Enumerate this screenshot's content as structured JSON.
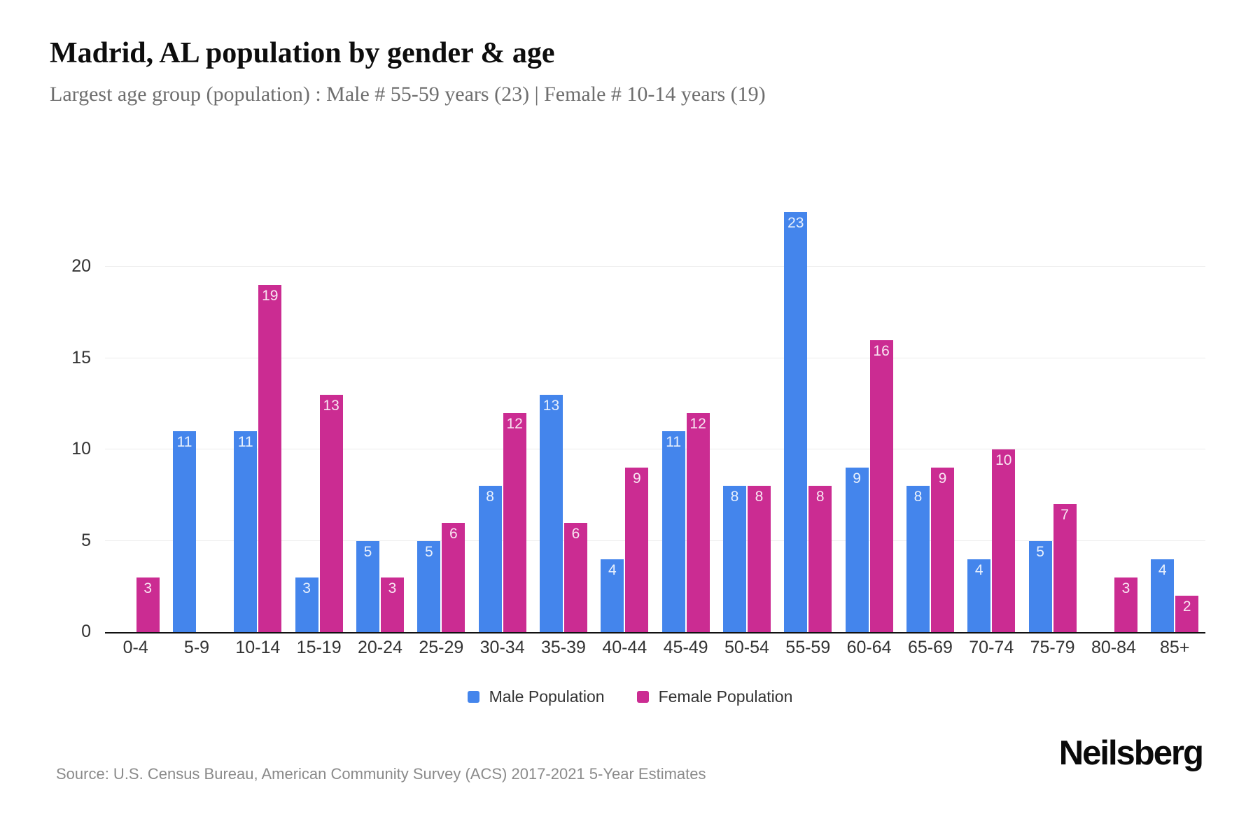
{
  "header": {
    "title": "Madrid, AL population by gender & age",
    "subtitle": "Largest age group (population) : Male # 55-59 years (23) | Female # 10-14 years (19)"
  },
  "chart_data": {
    "type": "bar",
    "title": "Madrid, AL population by gender & age",
    "categories": [
      "0-4",
      "5-9",
      "10-14",
      "15-19",
      "20-24",
      "25-29",
      "30-34",
      "35-39",
      "40-44",
      "45-49",
      "50-54",
      "55-59",
      "60-64",
      "65-69",
      "70-74",
      "75-79",
      "80-84",
      "85+"
    ],
    "series": [
      {
        "name": "Male Population",
        "color": "#4485EC",
        "values": [
          0,
          11,
          11,
          3,
          5,
          5,
          8,
          13,
          4,
          11,
          8,
          23,
          9,
          8,
          4,
          5,
          0,
          4
        ]
      },
      {
        "name": "Female Population",
        "color": "#CB2C92",
        "values": [
          3,
          0,
          19,
          13,
          3,
          6,
          12,
          6,
          9,
          12,
          8,
          8,
          16,
          9,
          10,
          7,
          3,
          2
        ]
      }
    ],
    "xlabel": "",
    "ylabel": "",
    "ylim": [
      0,
      25
    ],
    "yticks": [
      0,
      5,
      10,
      15,
      20
    ],
    "grid": "horizontal",
    "legend_position": "bottom",
    "value_labels": "inside-top, white"
  },
  "colors": {
    "male": "#4485EC",
    "female": "#CB2C92",
    "gridline": "#ececec",
    "axis_line": "#111111",
    "tick_text": "#333333",
    "subtitle_text": "#6e6e6e",
    "source_text": "#8a8a8a"
  },
  "footer": {
    "source": "Source: U.S. Census Bureau, American Community Survey (ACS) 2017-2021 5-Year Estimates",
    "brand": "Neilsberg"
  }
}
